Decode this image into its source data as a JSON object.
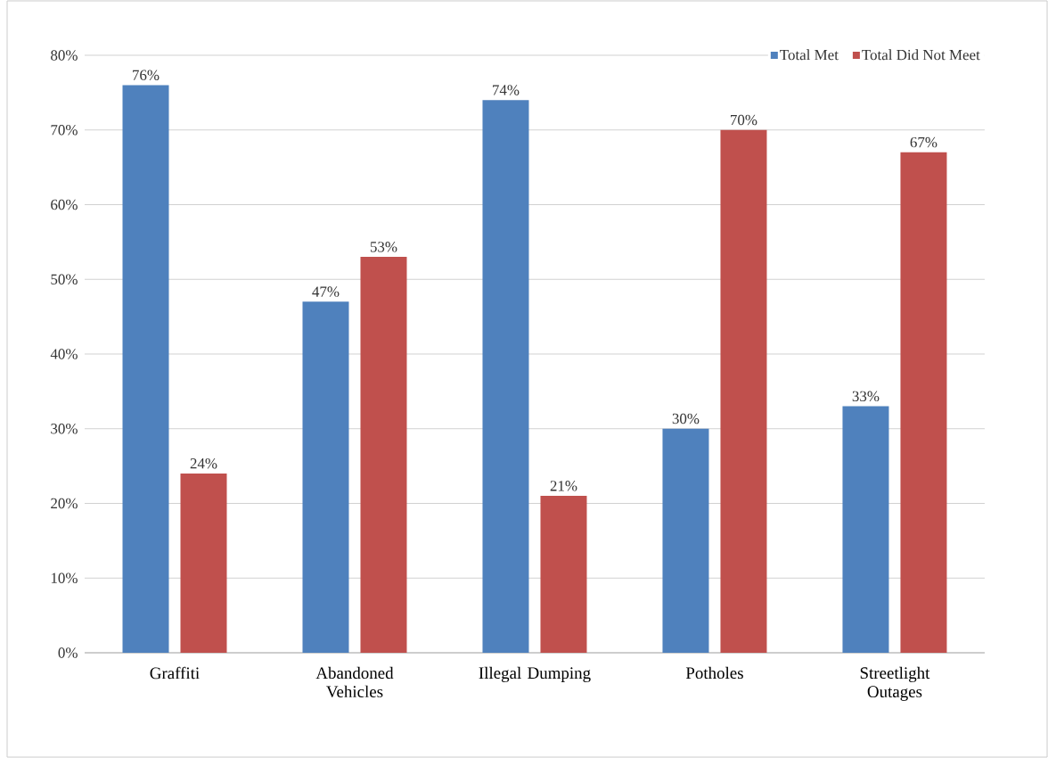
{
  "chart_data": {
    "type": "bar",
    "categories": [
      "Graffiti",
      "Abandoned Vehicles",
      "Illegal Dumping",
      "Potholes",
      "Streetlight Outages"
    ],
    "series": [
      {
        "name": "Total Met",
        "color": "#4f81bd",
        "values": [
          76,
          47,
          74,
          30,
          33
        ],
        "value_labels": [
          "76%",
          "47%",
          "74%",
          "30%",
          "33%"
        ]
      },
      {
        "name": "Total Did Not Meet",
        "color": "#c0504d",
        "values": [
          24,
          53,
          21,
          70,
          67
        ],
        "value_labels": [
          "24%",
          "53%",
          "21%",
          "70%",
          "67%"
        ]
      }
    ],
    "ylim": [
      0,
      80
    ],
    "yticks": [
      {
        "value": 0,
        "label": "0%"
      },
      {
        "value": 10,
        "label": "10%"
      },
      {
        "value": 20,
        "label": "20%"
      },
      {
        "value": 30,
        "label": "30%"
      },
      {
        "value": 40,
        "label": "40%"
      },
      {
        "value": 50,
        "label": "50%"
      },
      {
        "value": 60,
        "label": "60%"
      },
      {
        "value": 70,
        "label": "70%"
      },
      {
        "value": 80,
        "label": "80%"
      }
    ],
    "grid": "y",
    "legend": "top right"
  }
}
